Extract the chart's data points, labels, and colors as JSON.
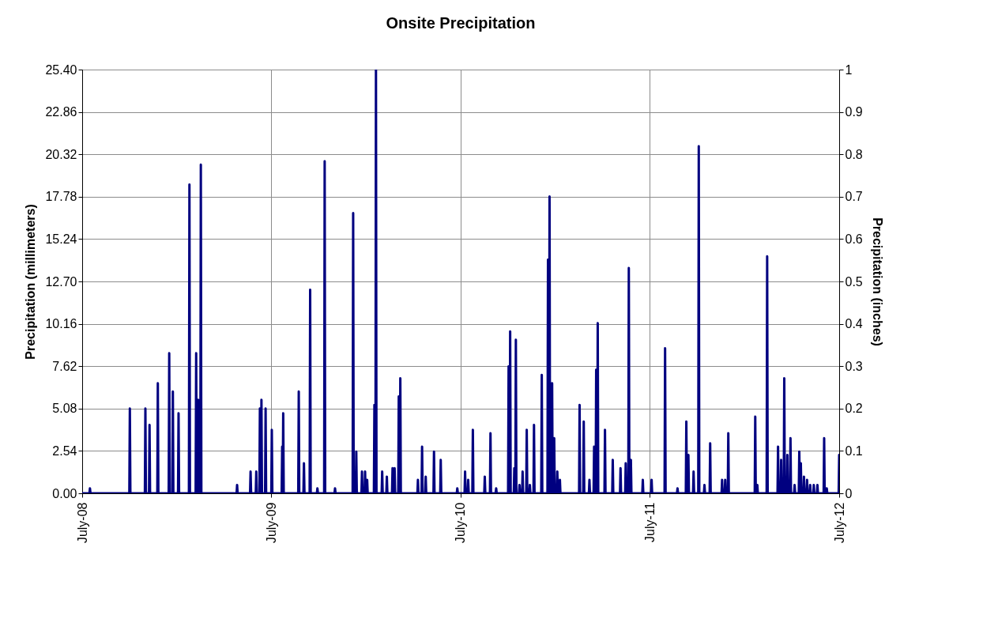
{
  "chart_data": {
    "type": "line",
    "title": "Onsite Precipitation",
    "ylabel": "Precipitation (millimeters)",
    "y2label": "Precipitation (inches)",
    "x": [
      "2008-07-01",
      "2008-07-15",
      "2008-07-16",
      "2008-07-17",
      "2008-09-30",
      "2008-10-01",
      "2008-10-02",
      "2008-10-30",
      "2008-10-31",
      "2008-11-01",
      "2008-11-07",
      "2008-11-08",
      "2008-11-09",
      "2008-11-23",
      "2008-11-24",
      "2008-11-25",
      "2008-12-15",
      "2008-12-16",
      "2008-12-17",
      "2008-12-22",
      "2008-12-23",
      "2008-12-24",
      "2009-01-02",
      "2009-01-03",
      "2009-01-04",
      "2009-01-23",
      "2009-01-24",
      "2009-01-25",
      "2009-02-05",
      "2009-02-06",
      "2009-02-07",
      "2009-02-09",
      "2009-02-10",
      "2009-02-11",
      "2009-02-14",
      "2009-02-15",
      "2009-02-16",
      "2009-04-25",
      "2009-04-26",
      "2009-04-27",
      "2009-05-21",
      "2009-05-22",
      "2009-05-23",
      "2009-06-01",
      "2009-06-02",
      "2009-06-03",
      "2009-06-08",
      "2009-06-09",
      "2009-06-10",
      "2009-06-11",
      "2009-06-12",
      "2009-06-13",
      "2009-06-19",
      "2009-06-20",
      "2009-06-21",
      "2009-07-01",
      "2009-07-02",
      "2009-07-03",
      "2009-07-21",
      "2009-07-22",
      "2009-07-23",
      "2009-07-24",
      "2009-07-25",
      "2009-08-22",
      "2009-08-23",
      "2009-08-24",
      "2009-09-01",
      "2009-09-02",
      "2009-09-03",
      "2009-09-13",
      "2009-09-14",
      "2009-09-15",
      "2009-09-27",
      "2009-09-28",
      "2009-09-29",
      "2009-10-11",
      "2009-10-12",
      "2009-10-13",
      "2009-10-31",
      "2009-11-01",
      "2009-11-02",
      "2009-12-05",
      "2009-12-06",
      "2009-12-07",
      "2009-12-11",
      "2009-12-12",
      "2009-12-13",
      "2009-12-22",
      "2009-12-23",
      "2009-12-24",
      "2009-12-28",
      "2009-12-29",
      "2009-12-30",
      "2010-01-01",
      "2010-01-02",
      "2010-01-03",
      "2010-01-15",
      "2010-01-16",
      "2010-01-17",
      "2010-01-18",
      "2010-01-19",
      "2010-01-20",
      "2010-01-30",
      "2010-01-31",
      "2010-02-01",
      "2010-02-08",
      "2010-02-09",
      "2010-02-10",
      "2010-02-19",
      "2010-02-20",
      "2010-02-21",
      "2010-02-23",
      "2010-02-24",
      "2010-02-25",
      "2010-03-03",
      "2010-03-04",
      "2010-03-05",
      "2010-03-06",
      "2010-03-07",
      "2010-03-08",
      "2010-04-09",
      "2010-04-10",
      "2010-04-11",
      "2010-04-17",
      "2010-04-18",
      "2010-04-19",
      "2010-04-24",
      "2010-04-25",
      "2010-04-26",
      "2010-05-10",
      "2010-05-11",
      "2010-05-12",
      "2010-05-23",
      "2010-05-24",
      "2010-05-25",
      "2010-06-24",
      "2010-06-25",
      "2010-06-26",
      "2010-07-09",
      "2010-07-10",
      "2010-07-11",
      "2010-07-15",
      "2010-07-16",
      "2010-07-17",
      "2010-07-24",
      "2010-07-25",
      "2010-07-26",
      "2010-08-16",
      "2010-08-17",
      "2010-08-18",
      "2010-08-27",
      "2010-08-28",
      "2010-08-29",
      "2010-09-07",
      "2010-09-08",
      "2010-09-09",
      "2010-10-01",
      "2010-10-02",
      "2010-10-03",
      "2010-10-04",
      "2010-10-05",
      "2010-10-06",
      "2010-10-12",
      "2010-10-13",
      "2010-10-14",
      "2010-10-15",
      "2010-10-16",
      "2010-10-17",
      "2010-10-22",
      "2010-10-23",
      "2010-10-24",
      "2010-10-28",
      "2010-10-29",
      "2010-10-30",
      "2010-11-05",
      "2010-11-06",
      "2010-11-07",
      "2010-11-11",
      "2010-11-12",
      "2010-11-13",
      "2010-11-19",
      "2010-11-20",
      "2010-11-21",
      "2010-12-04",
      "2010-12-05",
      "2010-12-06",
      "2010-12-16",
      "2010-12-17",
      "2010-12-18",
      "2010-12-19",
      "2010-12-20",
      "2010-12-21",
      "2010-12-24",
      "2010-12-25",
      "2010-12-26",
      "2010-12-28",
      "2010-12-29",
      "2010-12-30",
      "2011-01-03",
      "2011-01-04",
      "2011-01-05",
      "2011-01-08",
      "2011-01-09",
      "2011-01-10",
      "2011-02-15",
      "2011-02-16",
      "2011-02-17",
      "2011-02-23",
      "2011-02-24",
      "2011-02-25",
      "2011-03-06",
      "2011-03-07",
      "2011-03-08",
      "2011-03-15",
      "2011-03-16",
      "2011-03-17",
      "2011-03-19",
      "2011-03-20",
      "2011-03-21",
      "2011-03-22",
      "2011-03-23",
      "2011-03-24",
      "2011-04-05",
      "2011-04-06",
      "2011-04-07",
      "2011-04-20",
      "2011-04-21",
      "2011-04-22",
      "2011-05-05",
      "2011-05-06",
      "2011-05-07",
      "2011-05-15",
      "2011-05-16",
      "2011-05-17",
      "2011-05-21",
      "2011-05-22",
      "2011-05-23",
      "2011-05-25",
      "2011-05-26",
      "2011-05-27",
      "2011-06-17",
      "2011-06-18",
      "2011-06-19",
      "2011-07-04",
      "2011-07-05",
      "2011-07-06",
      "2011-07-30",
      "2011-07-31",
      "2011-08-01",
      "2011-08-23",
      "2011-08-24",
      "2011-08-25",
      "2011-09-09",
      "2011-09-10",
      "2011-09-11",
      "2011-09-13",
      "2011-09-14",
      "2011-09-15",
      "2011-09-23",
      "2011-09-24",
      "2011-09-25",
      "2011-10-03",
      "2011-10-04",
      "2011-10-05",
      "2011-10-14",
      "2011-10-15",
      "2011-10-16",
      "2011-10-25",
      "2011-10-26",
      "2011-10-27",
      "2011-11-17",
      "2011-11-18",
      "2011-11-19",
      "2011-11-23",
      "2011-11-24",
      "2011-11-25",
      "2011-11-29",
      "2011-11-30",
      "2011-12-01",
      "2012-01-20",
      "2012-01-21",
      "2012-01-22",
      "2012-01-24",
      "2012-01-25",
      "2012-01-26",
      "2012-02-12",
      "2012-02-13",
      "2012-02-14",
      "2012-03-04",
      "2012-03-05",
      "2012-03-06",
      "2012-03-10",
      "2012-03-11",
      "2012-03-12",
      "2012-03-16",
      "2012-03-17",
      "2012-03-18",
      "2012-03-22",
      "2012-03-23",
      "2012-03-24",
      "2012-03-28",
      "2012-03-29",
      "2012-03-30",
      "2012-04-05",
      "2012-04-06",
      "2012-04-07",
      "2012-04-14",
      "2012-04-15",
      "2012-04-16",
      "2012-04-17",
      "2012-04-18",
      "2012-04-19",
      "2012-04-23",
      "2012-04-24",
      "2012-04-25",
      "2012-04-29",
      "2012-04-30",
      "2012-05-01",
      "2012-05-05",
      "2012-05-06",
      "2012-05-07",
      "2012-05-12",
      "2012-05-13",
      "2012-05-14",
      "2012-05-19",
      "2012-05-20",
      "2012-05-21",
      "2012-06-01",
      "2012-06-02",
      "2012-06-03",
      "2012-06-06",
      "2012-06-07",
      "2012-06-08",
      "2012-06-30",
      "2012-07-01"
    ],
    "series": [
      {
        "color": "#000080",
        "values": [
          0,
          0,
          0.3,
          0,
          0,
          5.08,
          0,
          0,
          5.08,
          0,
          0,
          4.1,
          0,
          0,
          6.6,
          0,
          0,
          8.4,
          0,
          0,
          6.1,
          0,
          0,
          4.8,
          0,
          0,
          18.5,
          0,
          0,
          8.4,
          0,
          0,
          5.6,
          0,
          0,
          19.7,
          0,
          0,
          0.5,
          0,
          0,
          1.3,
          0,
          0,
          1.3,
          0,
          0,
          5.08,
          0,
          0,
          5.6,
          0,
          0,
          5.08,
          0,
          0,
          3.8,
          0,
          0,
          2.8,
          0,
          4.8,
          0,
          0,
          6.1,
          0,
          0,
          1.8,
          0,
          0,
          12.2,
          0,
          0,
          0.3,
          0,
          0,
          19.9,
          0,
          0,
          0.3,
          0,
          0,
          16.8,
          0,
          0,
          2.5,
          0,
          0,
          1.3,
          0,
          0,
          1.3,
          0,
          0,
          0.8,
          0,
          0,
          5.3,
          0,
          0,
          25.4,
          0,
          0,
          1.3,
          0,
          0,
          1.0,
          0,
          0,
          1.5,
          0,
          0,
          1.5,
          0,
          0,
          5.8,
          0,
          0,
          6.9,
          0,
          0,
          0.8,
          0,
          0,
          2.8,
          0,
          0,
          1.0,
          0,
          0,
          2.5,
          0,
          0,
          2.0,
          0,
          0,
          0.3,
          0,
          0,
          1.3,
          0,
          0,
          0.8,
          0,
          0,
          3.8,
          0,
          0,
          1.0,
          0,
          0,
          3.6,
          0,
          0,
          0.3,
          0,
          0,
          7.6,
          0,
          0,
          9.7,
          0,
          0,
          1.5,
          0,
          0,
          9.2,
          0,
          0,
          0.5,
          0,
          0,
          1.3,
          0,
          0,
          3.8,
          0,
          0,
          0.5,
          0,
          0,
          4.1,
          0,
          0,
          7.1,
          0,
          0,
          14.0,
          0,
          0,
          17.8,
          0,
          0,
          6.6,
          0,
          0,
          3.3,
          0,
          0,
          1.3,
          0,
          0,
          0.8,
          0,
          0,
          5.3,
          0,
          0,
          4.3,
          0,
          0,
          0.8,
          0,
          0,
          2.8,
          0,
          0,
          7.4,
          0,
          0,
          10.2,
          0,
          0,
          3.8,
          0,
          0,
          2.0,
          0,
          0,
          1.5,
          0,
          0,
          1.8,
          0,
          0,
          13.5,
          0,
          0,
          2.0,
          0,
          0,
          0.8,
          0,
          0,
          0.8,
          0,
          0,
          8.7,
          0,
          0,
          0.3,
          0,
          0,
          4.3,
          0,
          0,
          2.3,
          0,
          0,
          1.3,
          0,
          0,
          20.8,
          0,
          0,
          0.5,
          0,
          0,
          3.0,
          0,
          0,
          0.8,
          0,
          0,
          0.8,
          0,
          0,
          3.6,
          0,
          0,
          4.6,
          0,
          0,
          0.5,
          0,
          0,
          14.2,
          0,
          0,
          2.8,
          0,
          0,
          2.0,
          0,
          0,
          6.9,
          0,
          0,
          2.3,
          0,
          0,
          3.3,
          0,
          0,
          0.5,
          0,
          0,
          2.5,
          0,
          0,
          1.8,
          0,
          0,
          1.0,
          0,
          0,
          0.8,
          0,
          0,
          0.5,
          0,
          0,
          0.5,
          0,
          0,
          0.5,
          0,
          0,
          3.3,
          0,
          0,
          0.3,
          0,
          0,
          2.3
        ]
      }
    ],
    "xlim": [
      "2008-07-01",
      "2012-07-01"
    ],
    "xticks": [
      {
        "value": "2008-07-01",
        "label": "July-08"
      },
      {
        "value": "2009-07-01",
        "label": "July-09"
      },
      {
        "value": "2010-07-01",
        "label": "July-10"
      },
      {
        "value": "2011-07-01",
        "label": "July-11"
      },
      {
        "value": "2012-07-01",
        "label": "July-12"
      }
    ],
    "ylim": [
      0,
      25.4
    ],
    "yticks": [
      {
        "value": 0,
        "label": "0.00"
      },
      {
        "value": 2.54,
        "label": "2.54"
      },
      {
        "value": 5.08,
        "label": "5.08"
      },
      {
        "value": 7.62,
        "label": "7.62"
      },
      {
        "value": 10.16,
        "label": "10.16"
      },
      {
        "value": 12.7,
        "label": "12.70"
      },
      {
        "value": 15.24,
        "label": "15.24"
      },
      {
        "value": 17.78,
        "label": "17.78"
      },
      {
        "value": 20.32,
        "label": "20.32"
      },
      {
        "value": 22.86,
        "label": "22.86"
      },
      {
        "value": 25.4,
        "label": "25.40"
      }
    ],
    "y2lim": [
      0,
      1
    ],
    "y2ticks": [
      {
        "value": 0,
        "label": "0"
      },
      {
        "value": 0.1,
        "label": "0.1"
      },
      {
        "value": 0.2,
        "label": "0.2"
      },
      {
        "value": 0.3,
        "label": "0.3"
      },
      {
        "value": 0.4,
        "label": "0.4"
      },
      {
        "value": 0.5,
        "label": "0.5"
      },
      {
        "value": 0.6,
        "label": "0.6"
      },
      {
        "value": 0.7,
        "label": "0.7"
      },
      {
        "value": 0.8,
        "label": "0.8"
      },
      {
        "value": 0.9,
        "label": "0.9"
      },
      {
        "value": 1,
        "label": "1"
      }
    ],
    "grid": true,
    "marker": "none",
    "line_style": "solid"
  }
}
